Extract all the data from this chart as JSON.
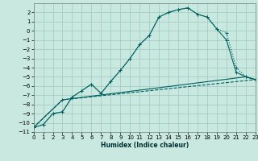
{
  "bg_color": "#c8e8e0",
  "grid_color": "#a0c8c0",
  "line_color": "#006060",
  "xlabel": "Humidex (Indice chaleur)",
  "xlim": [
    0,
    23
  ],
  "ylim": [
    -11,
    3
  ],
  "xticks": [
    0,
    1,
    2,
    3,
    4,
    5,
    6,
    7,
    8,
    9,
    10,
    11,
    12,
    13,
    14,
    15,
    16,
    17,
    18,
    19,
    20,
    21,
    22,
    23
  ],
  "yticks": [
    -11,
    -10,
    -9,
    -8,
    -7,
    -6,
    -5,
    -4,
    -3,
    -2,
    -1,
    0,
    1,
    2
  ],
  "curve1_x": [
    0,
    1,
    2,
    3,
    4,
    5,
    6,
    7,
    8,
    9,
    10,
    11,
    12,
    13,
    14,
    15,
    16,
    17,
    18,
    19,
    20,
    21,
    22,
    23
  ],
  "curve1_y": [
    -10.5,
    -10.2,
    -9.0,
    -8.8,
    -7.2,
    -6.5,
    -5.8,
    -6.8,
    -5.5,
    -4.3,
    -3.0,
    -1.5,
    -0.5,
    1.5,
    2.0,
    2.3,
    2.5,
    1.8,
    1.5,
    0.2,
    -0.2,
    -4.0,
    -5.0,
    -5.3
  ],
  "curve2_x": [
    0,
    1,
    2,
    3,
    4,
    5,
    6,
    7,
    8,
    9,
    10,
    11,
    12,
    13,
    14,
    15,
    16,
    17,
    18,
    19,
    20,
    21,
    22,
    23
  ],
  "curve2_y": [
    -10.5,
    -10.2,
    -9.0,
    -8.8,
    -7.2,
    -6.5,
    -5.8,
    -6.8,
    -5.5,
    -4.3,
    -3.0,
    -1.5,
    -0.5,
    1.5,
    2.0,
    2.3,
    2.5,
    1.8,
    1.5,
    0.2,
    -1.0,
    -4.5,
    -5.0,
    -5.3
  ],
  "curve3_x": [
    0,
    3,
    22,
    23
  ],
  "curve3_y": [
    -10.5,
    -7.5,
    -5.0,
    -5.3
  ],
  "curve4_x": [
    0,
    3,
    23
  ],
  "curve4_y": [
    -10.5,
    -7.5,
    -5.3
  ],
  "lw": 0.8,
  "tick_fontsize": 5.0,
  "xlabel_fontsize": 5.5
}
